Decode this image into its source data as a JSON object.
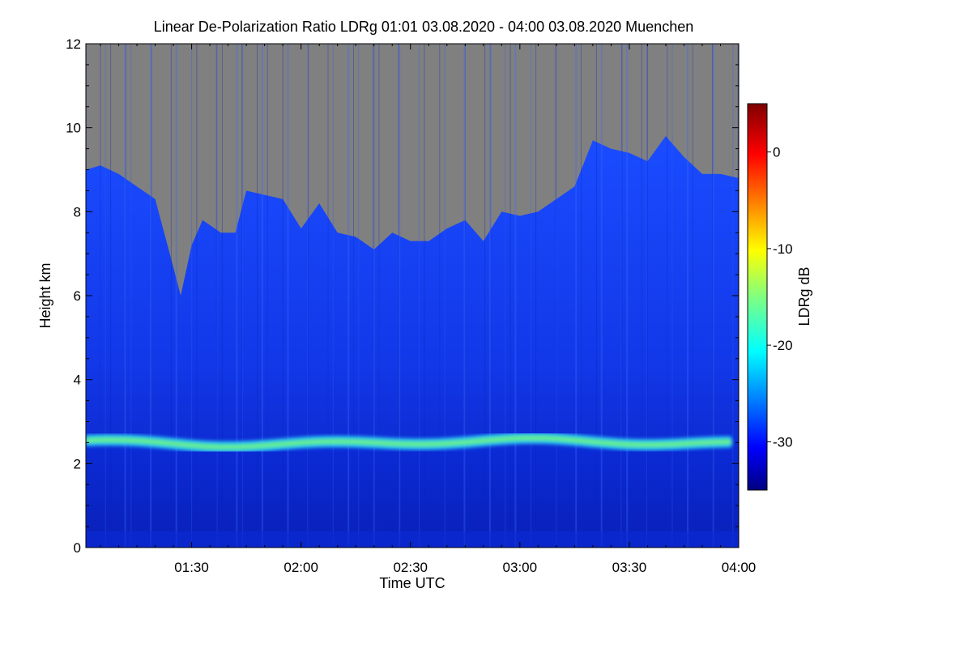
{
  "chart_data": {
    "type": "heatmap",
    "title": "Linear De-Polarization Ratio LDRg   01:01 03.08.2020 - 04:00 03.08.2020 Muenchen",
    "xlabel": "Time UTC",
    "ylabel": "Height km",
    "xlim": [
      "01:01",
      "04:00"
    ],
    "ylim": [
      0,
      12
    ],
    "x_ticks": [
      "01:30",
      "02:00",
      "02:30",
      "03:00",
      "03:30",
      "04:00"
    ],
    "y_ticks": [
      "0",
      "2",
      "4",
      "6",
      "8",
      "10",
      "12"
    ],
    "no_signal_color": "#808080",
    "colorbar": {
      "label": "LDRg dB",
      "range": [
        -35,
        5
      ],
      "ticks": [
        "-30",
        "-20",
        "-10",
        "0"
      ],
      "colormap": "jet"
    },
    "background_ldr_db": -30,
    "layer": {
      "name_shown": false,
      "height_km": 2.5,
      "thickness_km": 0.3,
      "ldr_db": -18
    },
    "signal_top_km": [
      {
        "time": "01:01",
        "km": 9.0
      },
      {
        "time": "01:05",
        "km": 9.1
      },
      {
        "time": "01:10",
        "km": 8.9
      },
      {
        "time": "01:15",
        "km": 8.6
      },
      {
        "time": "01:20",
        "km": 8.3
      },
      {
        "time": "01:24",
        "km": 7.0
      },
      {
        "time": "01:27",
        "km": 6.0
      },
      {
        "time": "01:30",
        "km": 7.2
      },
      {
        "time": "01:33",
        "km": 7.8
      },
      {
        "time": "01:38",
        "km": 7.5
      },
      {
        "time": "01:42",
        "km": 7.5
      },
      {
        "time": "01:45",
        "km": 8.5
      },
      {
        "time": "01:50",
        "km": 8.4
      },
      {
        "time": "01:55",
        "km": 8.3
      },
      {
        "time": "02:00",
        "km": 7.6
      },
      {
        "time": "02:05",
        "km": 8.2
      },
      {
        "time": "02:10",
        "km": 7.5
      },
      {
        "time": "02:15",
        "km": 7.4
      },
      {
        "time": "02:20",
        "km": 7.1
      },
      {
        "time": "02:25",
        "km": 7.5
      },
      {
        "time": "02:30",
        "km": 7.3
      },
      {
        "time": "02:35",
        "km": 7.3
      },
      {
        "time": "02:40",
        "km": 7.6
      },
      {
        "time": "02:45",
        "km": 7.8
      },
      {
        "time": "02:50",
        "km": 7.3
      },
      {
        "time": "02:55",
        "km": 8.0
      },
      {
        "time": "03:00",
        "km": 7.9
      },
      {
        "time": "03:05",
        "km": 8.0
      },
      {
        "time": "03:10",
        "km": 8.3
      },
      {
        "time": "03:15",
        "km": 8.6
      },
      {
        "time": "03:20",
        "km": 9.7
      },
      {
        "time": "03:25",
        "km": 9.5
      },
      {
        "time": "03:30",
        "km": 9.4
      },
      {
        "time": "03:35",
        "km": 9.2
      },
      {
        "time": "03:40",
        "km": 9.8
      },
      {
        "time": "03:45",
        "km": 9.3
      },
      {
        "time": "03:50",
        "km": 8.9
      },
      {
        "time": "03:55",
        "km": 8.9
      },
      {
        "time": "04:00",
        "km": 8.8
      }
    ]
  }
}
